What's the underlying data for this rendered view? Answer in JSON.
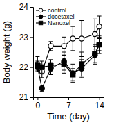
{
  "chart_data": {
    "type": "line",
    "x_label": "Time (day)",
    "y_label": "Body weight (g)",
    "x": [
      0,
      1,
      3,
      6,
      8,
      10,
      13,
      14
    ],
    "series": [
      {
        "name": "control",
        "color": "#000000",
        "marker": "circle-open",
        "values": [
          22.1,
          21.85,
          22.7,
          22.7,
          22.95,
          22.95,
          23.1,
          23.35
        ],
        "errors": [
          0.25,
          0.2,
          0.15,
          0.3,
          0.4,
          0.6,
          0.5,
          0.35
        ]
      },
      {
        "name": "docetaxel",
        "color": "#000000",
        "marker": "circle",
        "values": [
          22.0,
          21.3,
          21.95,
          22.2,
          21.8,
          21.95,
          22.4,
          22.75
        ],
        "errors": [
          0.15,
          0.1,
          0.2,
          0.3,
          0.3,
          0.3,
          0.3,
          0.2
        ]
      },
      {
        "name": "Nanoxel",
        "color": "#000000",
        "marker": "square",
        "values": [
          22.05,
          22.0,
          22.05,
          22.1,
          21.75,
          22.1,
          22.45,
          22.75
        ],
        "errors": [
          0.15,
          0.2,
          0.2,
          0.3,
          0.2,
          0.4,
          0.3,
          0.3
        ]
      }
    ],
    "xlim": [
      -1,
      15
    ],
    "xticks": [
      0,
      7,
      14
    ],
    "ylim": [
      21,
      24
    ],
    "yticks": [
      21,
      22,
      23,
      24
    ],
    "legend": "upper left"
  }
}
